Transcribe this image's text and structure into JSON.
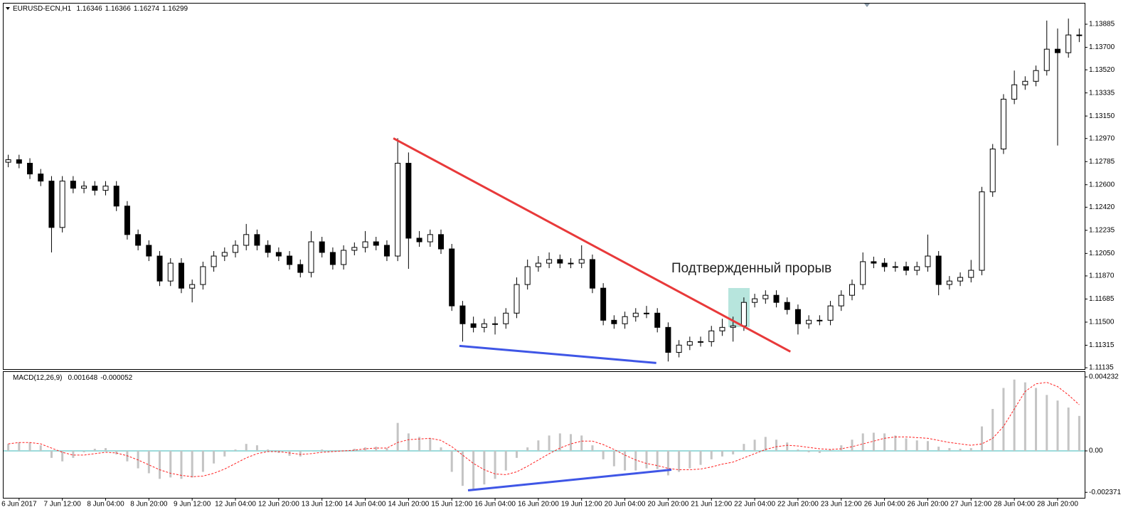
{
  "chart_data": [
    {
      "type": "candlestick",
      "title": "EURUSD-ECN,H1",
      "header_values": [
        1.16346,
        1.16366,
        1.16274,
        1.16299
      ],
      "annotation": "Подтвержденный прорыв",
      "colors": {
        "up": "#ffffff",
        "down": "#000000",
        "outline": "#000000"
      },
      "categories": [
        null,
        "6 Jun 2017",
        null,
        null,
        null,
        "7 Jun 12:00",
        null,
        null,
        null,
        "8 Jun 04:00",
        null,
        null,
        null,
        "8 Jun 20:00",
        null,
        null,
        null,
        "9 Jun 12:00",
        null,
        null,
        null,
        "12 Jun 04:00",
        null,
        null,
        null,
        "12 Jun 20:00",
        null,
        null,
        null,
        "13 Jun 12:00",
        null,
        null,
        null,
        "14 Jun 04:00",
        null,
        null,
        null,
        "14 Jun 20:00",
        null,
        null,
        null,
        "15 Jun 12:00",
        null,
        null,
        null,
        "16 Jun 04:00",
        null,
        null,
        null,
        "16 Jun 20:00",
        null,
        null,
        null,
        "19 Jun 12:00",
        null,
        null,
        null,
        "20 Jun 04:00",
        null,
        null,
        null,
        "20 Jun 20:00",
        null,
        null,
        null,
        "21 Jun 12:00",
        null,
        null,
        null,
        "22 Jun 04:00",
        null,
        null,
        null,
        "22 Jun 20:00",
        null,
        null,
        null,
        "23 Jun 12:00",
        null,
        null,
        null,
        "26 Jun 04:00",
        null,
        null,
        null,
        "26 Jun 20:00",
        null,
        null,
        null,
        "27 Jun 12:00",
        null,
        null,
        null,
        "28 Jun 04:00",
        null,
        null,
        null,
        "28 Jun 20:00",
        null,
        null
      ],
      "open": [
        1.1278,
        1.128,
        1.12772,
        1.12686,
        1.12629,
        1.12258,
        1.12629,
        1.12572,
        1.12589,
        1.12555,
        1.12589,
        1.12429,
        1.12201,
        1.12115,
        1.12029,
        1.11829,
        1.11972,
        1.11772,
        1.11801,
        1.11944,
        1.12029,
        1.12058,
        1.12115,
        1.12201,
        1.12115,
        1.12058,
        1.12029,
        1.11961,
        1.11898,
        1.12143,
        1.12058,
        1.11961,
        1.12075,
        1.12098,
        1.12143,
        1.12115,
        1.12029,
        1.12772,
        1.12172,
        1.12143,
        1.12201,
        1.12086,
        1.1163,
        1.11487,
        1.11458,
        1.11487,
        1.11487,
        1.11572,
        1.11801,
        1.11944,
        1.11972,
        1.12001,
        1.11972,
        1.11972,
        1.12001,
        1.11772,
        1.11515,
        1.11487,
        1.11544,
        1.11572,
        1.11572,
        1.11458,
        1.11258,
        1.11316,
        1.11344,
        1.11344,
        1.1143,
        1.11458,
        1.1147,
        1.11658,
        1.11687,
        1.11715,
        1.11658,
        1.11601,
        1.11487,
        1.11515,
        1.11515,
        1.1163,
        1.11715,
        1.11801,
        1.11984,
        1.11972,
        1.11944,
        1.11944,
        1.11915,
        1.11944,
        1.12029,
        1.11801,
        1.11829,
        1.11858,
        1.11915,
        1.12543,
        1.12886,
        1.13285,
        1.134,
        1.13428,
        1.13514,
        1.13685,
        1.13657,
        1.13799
      ],
      "high": [
        1.1284,
        1.1284,
        1.12812,
        1.12726,
        1.12669,
        1.12669,
        1.12669,
        1.12629,
        1.12629,
        1.12629,
        1.12629,
        1.12469,
        1.12241,
        1.12155,
        1.12069,
        1.12012,
        1.12012,
        1.11841,
        1.11984,
        1.12069,
        1.12098,
        1.12155,
        1.12286,
        1.12241,
        1.12155,
        1.12098,
        1.12069,
        1.12001,
        1.12229,
        1.12183,
        1.12098,
        1.12115,
        1.12138,
        1.12229,
        1.12183,
        1.12155,
        1.12972,
        1.12858,
        1.12229,
        1.12241,
        1.12241,
        1.12126,
        1.1167,
        1.11544,
        1.11527,
        1.11544,
        1.11612,
        1.11858,
        1.12001,
        1.12029,
        1.12058,
        1.12041,
        1.12012,
        1.12115,
        1.12041,
        1.11812,
        1.11555,
        1.11584,
        1.11612,
        1.1163,
        1.11612,
        1.11498,
        1.11356,
        1.11384,
        1.11384,
        1.1147,
        1.11527,
        1.11544,
        1.11698,
        1.11727,
        1.11755,
        1.11755,
        1.11698,
        1.11641,
        1.11555,
        1.11555,
        1.1167,
        1.11755,
        1.11841,
        1.12058,
        1.12024,
        1.12012,
        1.11984,
        1.11984,
        1.11984,
        1.12201,
        1.12069,
        1.11869,
        1.11898,
        1.11998,
        1.12583,
        1.12926,
        1.13325,
        1.13514,
        1.13468,
        1.13554,
        1.13914,
        1.1385,
        1.1393,
        1.1385
      ],
      "low": [
        1.1274,
        1.12732,
        1.12646,
        1.12589,
        1.12058,
        1.12218,
        1.12532,
        1.12532,
        1.12515,
        1.12515,
        1.12389,
        1.12161,
        1.12075,
        1.11989,
        1.11789,
        1.11789,
        1.11732,
        1.11658,
        1.11761,
        1.11904,
        1.11989,
        1.12018,
        1.12075,
        1.12075,
        1.12018,
        1.11989,
        1.11921,
        1.11858,
        1.11858,
        1.12018,
        1.11921,
        1.11921,
        1.12035,
        1.12058,
        1.12075,
        1.11989,
        1.11989,
        1.11927,
        1.12103,
        1.12103,
        1.12046,
        1.1159,
        1.11344,
        1.11418,
        1.11418,
        1.11401,
        1.11447,
        1.11532,
        1.11761,
        1.11904,
        1.11932,
        1.11932,
        1.11932,
        1.11932,
        1.11732,
        1.11475,
        1.11447,
        1.11447,
        1.11504,
        1.11532,
        1.11418,
        1.11185,
        1.11218,
        1.11276,
        1.11304,
        1.11304,
        1.1139,
        1.11344,
        1.1143,
        1.11618,
        1.11647,
        1.11618,
        1.11561,
        1.11401,
        1.11447,
        1.11475,
        1.11475,
        1.1159,
        1.11675,
        1.11761,
        1.11932,
        1.11904,
        1.11904,
        1.11875,
        1.11875,
        1.11904,
        1.11715,
        1.11761,
        1.11789,
        1.11818,
        1.11875,
        1.12503,
        1.12846,
        1.13245,
        1.1336,
        1.13388,
        1.13474,
        1.12914,
        1.13617,
        1.13742
      ],
      "close": [
        1.128,
        1.12772,
        1.12686,
        1.12629,
        1.12258,
        1.12629,
        1.12572,
        1.12589,
        1.12555,
        1.12589,
        1.12429,
        1.12201,
        1.12115,
        1.12029,
        1.11829,
        1.11972,
        1.11772,
        1.11801,
        1.11944,
        1.12029,
        1.12058,
        1.12115,
        1.12201,
        1.12115,
        1.12058,
        1.12029,
        1.11961,
        1.11898,
        1.12143,
        1.12058,
        1.11961,
        1.12075,
        1.12098,
        1.12143,
        1.12115,
        1.12029,
        1.12772,
        1.12172,
        1.12143,
        1.12201,
        1.12086,
        1.1163,
        1.11487,
        1.11458,
        1.11487,
        1.11487,
        1.11572,
        1.11801,
        1.11944,
        1.11972,
        1.12001,
        1.11972,
        1.11972,
        1.12001,
        1.11772,
        1.11515,
        1.11487,
        1.11544,
        1.11572,
        1.11572,
        1.11458,
        1.11258,
        1.11316,
        1.11344,
        1.11344,
        1.1143,
        1.11458,
        1.1147,
        1.11658,
        1.11687,
        1.11715,
        1.11658,
        1.11601,
        1.11487,
        1.11515,
        1.11515,
        1.1163,
        1.11715,
        1.11801,
        1.11984,
        1.11972,
        1.11944,
        1.11944,
        1.11915,
        1.11944,
        1.12029,
        1.11801,
        1.11829,
        1.11858,
        1.11915,
        1.12543,
        1.12886,
        1.13285,
        1.134,
        1.13428,
        1.13514,
        1.13685,
        1.13657,
        1.13799,
        1.13799
      ],
      "ylim": [
        1.11124,
        1.14056
      ],
      "yticks": [
        1.13885,
        {
          "value": 1.137,
          "label": "1.13700"
        },
        {
          "value": 1.1352,
          "label": "1.13520"
        },
        1.13335,
        {
          "value": 1.1315,
          "label": "1.13150"
        },
        {
          "value": 1.1297,
          "label": "1.12970"
        },
        1.12785,
        {
          "value": 1.126,
          "label": "1.12600"
        },
        {
          "value": 1.1242,
          "label": "1.12420"
        },
        1.12235,
        {
          "value": 1.1205,
          "label": "1.12050"
        },
        {
          "value": 1.1187,
          "label": "1.11870"
        },
        1.11685,
        {
          "value": 1.115,
          "label": "1.11500"
        },
        1.11315,
        1.11135
      ],
      "trendlines": [
        {
          "color": "#e8393a",
          "x": [
            35.6,
            72.3
          ],
          "y": [
            1.12972,
            1.11264
          ]
        },
        {
          "color": "#3f56e6",
          "x": [
            41.7,
            59.9
          ],
          "y": [
            1.1131,
            1.11173
          ]
        }
      ]
    },
    {
      "type": "macd",
      "title": "MACD(12,26,9)",
      "header_values": [
        0.001648,
        -5.2e-05
      ],
      "histogram": {
        "color": "#c4c4c4",
        "values": [
          0.0004,
          0.00048,
          0.00048,
          0.00032,
          -0.0004,
          -0.0006,
          -0.0004,
          -8e-05,
          0.00012,
          0.00016,
          -0.0002,
          -0.0006,
          -0.001,
          -0.00128,
          -0.0016,
          -0.00152,
          -0.0016,
          -0.00152,
          -0.0012,
          -0.00072,
          -0.00032,
          8e-05,
          0.0004,
          0.00032,
          8e-05,
          -0.00012,
          -0.00028,
          -0.00032,
          0,
          8e-05,
          -4e-05,
          4e-05,
          0.00012,
          0.0002,
          0.00024,
          0.00016,
          0.0016,
          0.001,
          0.0008,
          0.00072,
          0.0002,
          -0.0012,
          -0.002,
          -0.0022,
          -0.00192,
          -0.0016,
          -0.00112,
          -0.0004,
          0.0002,
          0.0006,
          0.00088,
          0.001,
          0.00096,
          0.00088,
          0.00032,
          -0.00048,
          -0.00088,
          -0.00112,
          -0.00112,
          -0.001,
          -0.00104,
          -0.0014,
          -0.0012,
          -0.001,
          -0.0008,
          -0.00048,
          -0.00032,
          -0.0002,
          0.0004,
          0.00064,
          0.0008,
          0.00064,
          0.00048,
          8e-05,
          -8e-05,
          -0.00012,
          8e-05,
          0.00032,
          0.00064,
          0.001,
          0.00104,
          0.001,
          0.00088,
          0.00072,
          0.0006,
          0.00056,
          0.00024,
          0.00016,
          0.00012,
          0.00016,
          0.0014,
          0.0024,
          0.0036,
          0.00408,
          0.00392,
          0.0036,
          0.0032,
          0.00288,
          0.00248,
          0.002
        ]
      },
      "signal": {
        "color": "#ff2020",
        "values": [
          0.0004,
          0.00048,
          0.00048,
          0.0004,
          0.00016,
          -8e-05,
          -0.00024,
          -0.00024,
          -0.00016,
          -8e-05,
          -0.00012,
          -0.00028,
          -0.00052,
          -0.0008,
          -0.00108,
          -0.00128,
          -0.0014,
          -0.00148,
          -0.00144,
          -0.00128,
          -0.00104,
          -0.00072,
          -0.0004,
          -0.00016,
          -4e-05,
          -4e-05,
          -0.00012,
          -0.0002,
          -0.00016,
          -8e-05,
          -4e-05,
          0,
          4e-05,
          0.00012,
          0.00016,
          0.00016,
          0.00048,
          0.00064,
          0.00068,
          0.00072,
          0.0006,
          0.00024,
          -0.00024,
          -0.00072,
          -0.00108,
          -0.00132,
          -0.00136,
          -0.0012,
          -0.00088,
          -0.00052,
          -0.00016,
          0.00016,
          0.0004,
          0.00056,
          0.00056,
          0.00036,
          8e-05,
          -0.00024,
          -0.00052,
          -0.00072,
          -0.00084,
          -0.001,
          -0.00108,
          -0.00108,
          -0.00104,
          -0.00092,
          -0.00076,
          -0.00064,
          -0.0004,
          -0.00016,
          8e-05,
          0.00024,
          0.00032,
          0.00028,
          0.0002,
          0.00012,
          8e-05,
          0.00012,
          0.00024,
          0.0004,
          0.00056,
          0.00072,
          0.0008,
          0.0008,
          0.00076,
          0.00072,
          0.0006,
          0.00048,
          0.0004,
          0.00032,
          0.0004,
          0.00072,
          0.0014,
          0.0024,
          0.0034,
          0.00384,
          0.00392,
          0.00368,
          0.0032,
          0.00264
        ]
      },
      "zero_color": "#7ccfcf",
      "ylim": [
        -0.002686,
        0.004517
      ],
      "yticks": [
        0.004232,
        {
          "value": 0,
          "label": "0.00"
        },
        -0.002371
      ],
      "trendlines": [
        {
          "color": "#3f56e6",
          "x": [
            42.5,
            61.3
          ],
          "y": [
            -0.00226,
            -0.00108
          ]
        }
      ]
    }
  ]
}
